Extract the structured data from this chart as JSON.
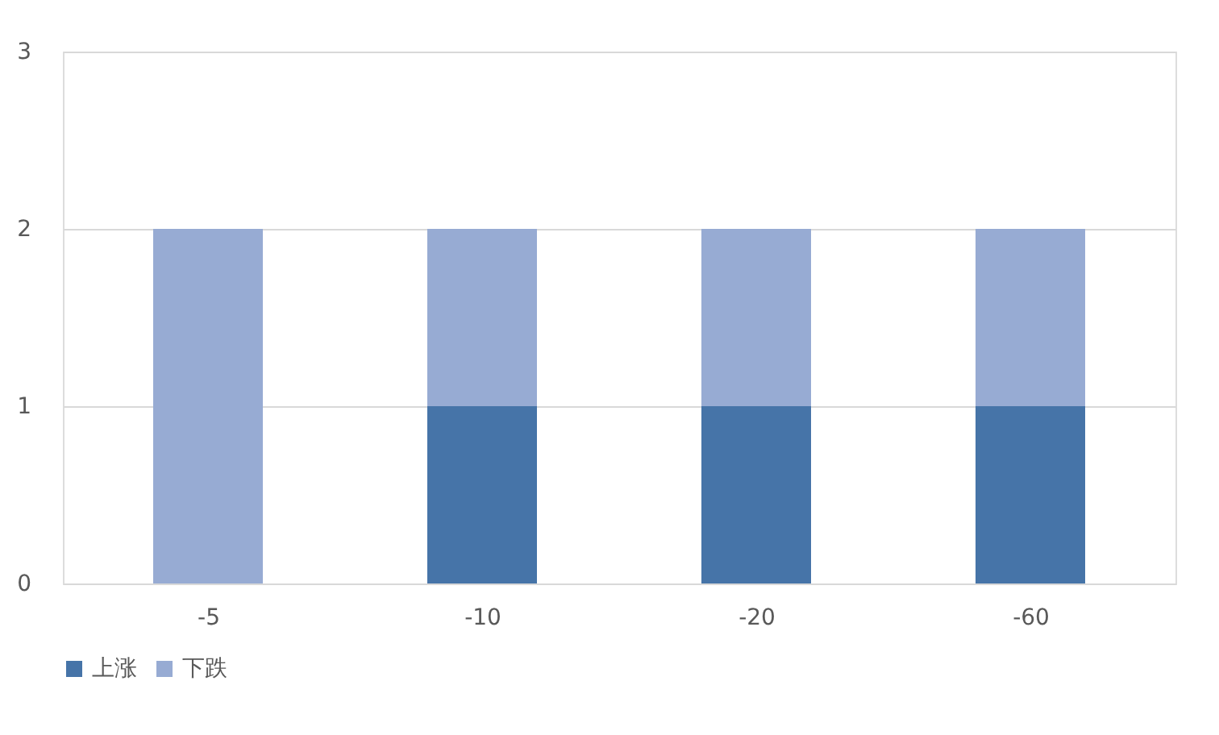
{
  "chart_data": {
    "type": "bar",
    "stacked": true,
    "categories": [
      "-5",
      "-10",
      "-20",
      "-60"
    ],
    "series": [
      {
        "name": "上涨",
        "color": "#4674a8",
        "values": [
          0,
          1,
          1,
          1
        ]
      },
      {
        "name": "下跌",
        "color": "#97abd3",
        "values": [
          2,
          1,
          1,
          1
        ]
      }
    ],
    "ylim": [
      0,
      3
    ],
    "yticks": [
      0,
      1,
      2,
      3
    ],
    "grid": "y",
    "legend": "bottom"
  }
}
